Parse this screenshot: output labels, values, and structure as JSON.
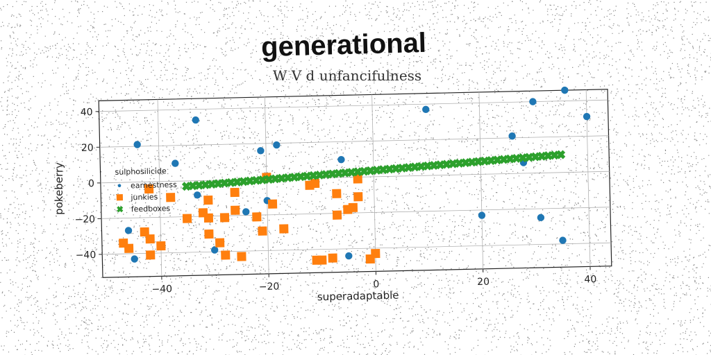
{
  "chart_data": {
    "type": "scatter",
    "title": "generational",
    "subtitle": "W V d unfancifulness",
    "xlabel": "superadaptable",
    "ylabel": "pokeberry",
    "xlim": [
      -51,
      44
    ],
    "ylim": [
      -53,
      46
    ],
    "xticks": [
      -40,
      -20,
      0,
      20,
      40
    ],
    "xtick_labels": [
      "−40",
      "−20",
      "0",
      "20",
      "40"
    ],
    "yticks": [
      -40,
      -20,
      0,
      20,
      40
    ],
    "ytick_labels": [
      "−40",
      "−20",
      "0",
      "20",
      "40"
    ],
    "grid": true,
    "legend": {
      "title": "sulphosilicide",
      "placement": "center-left"
    },
    "series": [
      {
        "name": "earnestness",
        "marker": "circle",
        "color": "#1f77b4",
        "points": [
          [
            -44,
            21
          ],
          [
            -33,
            34
          ],
          [
            -21,
            16
          ],
          [
            -18,
            19
          ],
          [
            -37,
            10
          ],
          [
            -46,
            -27
          ],
          [
            -45,
            -43
          ],
          [
            -33,
            -8
          ],
          [
            -30,
            -39
          ],
          [
            -24,
            -18
          ],
          [
            -20,
            -12
          ],
          [
            -6,
            10
          ],
          [
            -5,
            -44
          ],
          [
            10,
            37
          ],
          [
            20,
            -23
          ],
          [
            26,
            21
          ],
          [
            28,
            6
          ],
          [
            30,
            40
          ],
          [
            31,
            -25
          ],
          [
            35,
            -38
          ],
          [
            36,
            46
          ],
          [
            40,
            31
          ]
        ]
      },
      {
        "name": "junkies",
        "marker": "square",
        "color": "#ff7f0e",
        "points": [
          [
            -47,
            -34
          ],
          [
            -46,
            -37
          ],
          [
            -43,
            -28
          ],
          [
            -42,
            -32
          ],
          [
            -42,
            -41
          ],
          [
            -40,
            -36
          ],
          [
            -42,
            -4
          ],
          [
            -38,
            -9
          ],
          [
            -35,
            -21
          ],
          [
            -31,
            -11
          ],
          [
            -31,
            -21
          ],
          [
            -32,
            -18
          ],
          [
            -31,
            -30
          ],
          [
            -29,
            -35
          ],
          [
            -28,
            -21
          ],
          [
            -28,
            -42
          ],
          [
            -26,
            -7
          ],
          [
            -26,
            -17
          ],
          [
            -25,
            -43
          ],
          [
            -22,
            -21
          ],
          [
            -21,
            -29
          ],
          [
            -20,
            1
          ],
          [
            -19,
            -14
          ],
          [
            -17,
            -28
          ],
          [
            -12,
            -4
          ],
          [
            -11,
            -3
          ],
          [
            -11,
            -46
          ],
          [
            -10,
            -46
          ],
          [
            -8,
            -45
          ],
          [
            -7,
            -21
          ],
          [
            -7,
            -9
          ],
          [
            -5,
            -18
          ],
          [
            -4,
            -17
          ],
          [
            -3,
            -11
          ],
          [
            -3,
            -1
          ],
          [
            -1,
            -46
          ],
          [
            0,
            -43
          ]
        ]
      },
      {
        "name": "feedboxes",
        "marker": "x",
        "color": "#2ca02c",
        "x_range": [
          -35,
          35
        ],
        "y_range": [
          -3,
          10
        ],
        "count": 60
      }
    ]
  }
}
